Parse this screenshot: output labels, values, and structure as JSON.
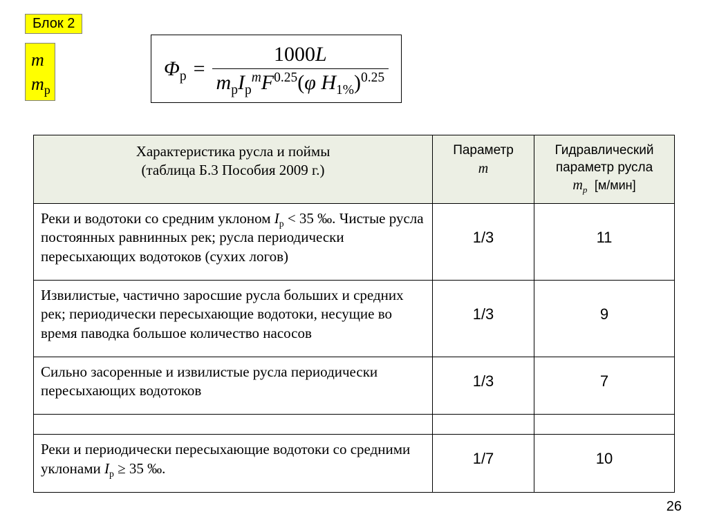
{
  "block_label": "Блок 2",
  "params": {
    "m": "m",
    "mp_base": "m",
    "mp_sub": "р"
  },
  "formula": {
    "lhs_sym": "Φ",
    "lhs_sub": "р",
    "num_const": "1000",
    "num_var": "L",
    "den_m_base": "m",
    "den_m_sub": "р",
    "den_I_base": "I",
    "den_I_sub": "р",
    "den_I_sup": "m",
    "den_F_base": "F",
    "den_F_sup": "0.25",
    "den_phi": "φ",
    "den_H_base": "H",
    "den_H_sub": "1%",
    "den_tail_sup": "0.25"
  },
  "table": {
    "header": {
      "desc_line1": "Характеристика русла и поймы",
      "desc_line2": "(таблица Б.3 Пособия 2009 г.)",
      "m_label": "Параметр",
      "m_sym": "m",
      "mp_label": "Гидравлический параметр русла",
      "mp_sym_base": "m",
      "mp_sym_sub": "р",
      "mp_unit": "[м/мин]"
    },
    "rows": [
      {
        "desc_pre": "Реки и водотоки со средним уклоном ",
        "desc_I": "I",
        "desc_I_sub": "р",
        "desc_rel": " < 35 ‰. ",
        "desc_post": "Чистые русла постоянных равнинных рек; русла периодически пересыхающих водотоков (сухих логов)",
        "m": "1/3",
        "mp": "11"
      },
      {
        "desc_plain": "Извилистые, частично заросшие русла больших и средних рек; периодически пересыхающие водотоки, несущие во время паводка большое количество насосов",
        "m": "1/3",
        "mp": "9"
      },
      {
        "desc_plain": "Сильно засоренные и извилистые русла периодически пересыхающих водотоков",
        "m": "1/3",
        "mp": "7"
      },
      {
        "desc_pre": "Реки и периодически пересыхающие водотоки со средними уклонами ",
        "desc_I": "I",
        "desc_I_sub": "р",
        "desc_rel": " ≥ 35 ‰.",
        "desc_post": "",
        "m": "1/7",
        "mp": "10"
      }
    ]
  },
  "page_num": "26",
  "colors": {
    "highlight": "#ffff00",
    "table_header_bg": "#ecefe4",
    "border": "#000000"
  }
}
